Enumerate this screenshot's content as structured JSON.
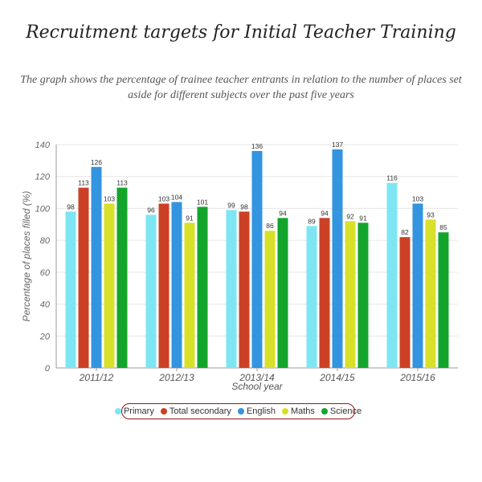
{
  "header": {
    "title": "Recruitment targets for Initial Teacher Training",
    "subtitle": "The graph shows the percentage of trainee teacher entrants in relation to the number of places set aside for different subjects over the past five years"
  },
  "chart_data": {
    "type": "bar",
    "title": "Recruitment targets for Initial Teacher Training",
    "xlabel": "School year",
    "ylabel": "Percentage of places filled (%)",
    "ylim": [
      0,
      140
    ],
    "yticks": [
      0,
      20,
      40,
      60,
      80,
      100,
      120,
      140
    ],
    "grid": true,
    "legend": "bottom",
    "categories": [
      "2011/12",
      "2012/13",
      "2013/14",
      "2014/15",
      "2015/16"
    ],
    "series": [
      {
        "name": "Primary",
        "color": "#7ee6f2",
        "values": [
          98,
          96,
          99,
          89,
          116
        ]
      },
      {
        "name": "Total secondary",
        "color": "#cc4125",
        "values": [
          113,
          103,
          98,
          94,
          82
        ]
      },
      {
        "name": "English",
        "color": "#3394e0",
        "values": [
          126,
          104,
          136,
          137,
          103
        ]
      },
      {
        "name": "Maths",
        "color": "#d9e02a",
        "values": [
          103,
          91,
          86,
          92,
          93
        ]
      },
      {
        "name": "Science",
        "color": "#13a52b",
        "values": [
          113,
          101,
          94,
          91,
          85
        ]
      }
    ]
  }
}
